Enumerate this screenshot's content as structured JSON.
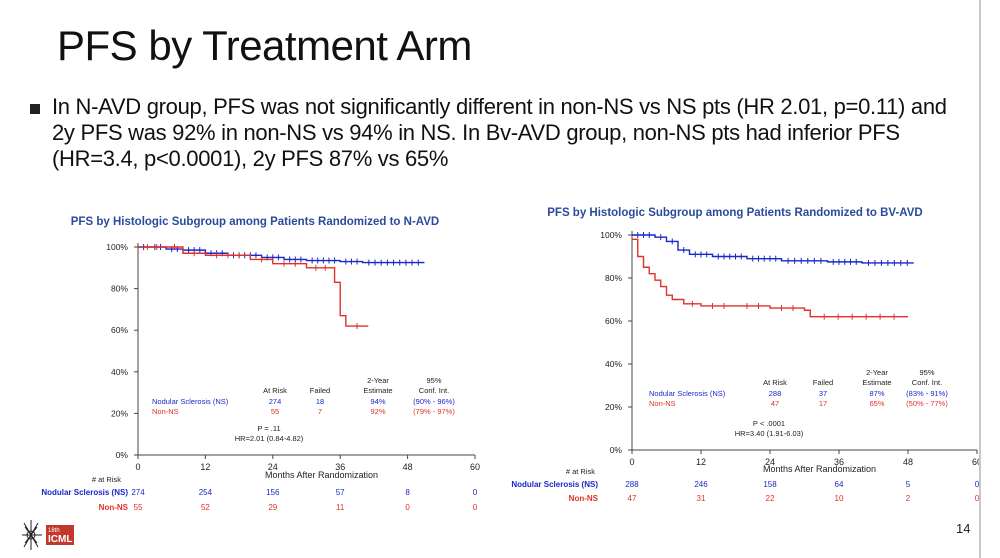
{
  "slide": {
    "title": "PFS by Treatment Arm",
    "bullet": "In N-AVD group, PFS was not significantly different in non-NS vs NS pts (HR 2.01, p=0.11) and 2y PFS was 92% in non-NS vs 94% in NS. In Bv-AVD group, non-NS pts had inferior PFS (HR=3.4, p<0.0001), 2y PFS 87% vs 65%",
    "page_number": "14",
    "logo_text_1": "18th",
    "logo_text_2": "ICML"
  },
  "colors": {
    "ns": "#1a27c9",
    "non_ns": "#e0312a",
    "title_blue": "#2a4b9b",
    "axis": "#444444"
  },
  "chart_data": [
    {
      "type": "line",
      "title": "PFS by Histologic Subgroup among Patients Randomized to N-AVD",
      "xlabel": "Months After Randomization",
      "ylabel": "",
      "xlim": [
        0,
        60
      ],
      "ylim": [
        0,
        100
      ],
      "x_ticks": [
        0,
        12,
        24,
        36,
        48,
        60
      ],
      "y_ticks": [
        "0%",
        "20%",
        "40%",
        "60%",
        "80%",
        "100%"
      ],
      "series": [
        {
          "name": "Nodular Sclerosis (NS)",
          "color": "#1a27c9",
          "points": [
            [
              0,
              100
            ],
            [
              2,
              100
            ],
            [
              5,
              99
            ],
            [
              8,
              98.5
            ],
            [
              12,
              97
            ],
            [
              16,
              96
            ],
            [
              22,
              95
            ],
            [
              26,
              94
            ],
            [
              30,
              93.5
            ],
            [
              36,
              93
            ],
            [
              40,
              92.5
            ],
            [
              51,
              92.5
            ]
          ]
        },
        {
          "name": "Non-NS",
          "color": "#e0312a",
          "points": [
            [
              0,
              100
            ],
            [
              5,
              100
            ],
            [
              8,
              97
            ],
            [
              12,
              96
            ],
            [
              20,
              94
            ],
            [
              24,
              92
            ],
            [
              30,
              90
            ],
            [
              35,
              90
            ],
            [
              35,
              83
            ],
            [
              36,
              83
            ],
            [
              36,
              67
            ],
            [
              37,
              62
            ],
            [
              41,
              62
            ]
          ]
        }
      ],
      "stats_header": [
        "",
        "At Risk",
        "Failed",
        "2-Year Estimate",
        "95% Conf. Int."
      ],
      "stats_header_top": [
        "",
        "",
        "",
        "2-Year",
        "95%"
      ],
      "stats_header_bottom": [
        "",
        "At Risk",
        "Failed",
        "Estimate",
        "Conf. Int."
      ],
      "stats_rows": [
        [
          "Nodular Sclerosis (NS)",
          "274",
          "18",
          "94%",
          "(90% - 96%)"
        ],
        [
          "Non-NS",
          "55",
          "7",
          "92%",
          "(79% - 97%)"
        ]
      ],
      "p_value": "P = .11",
      "hr": "HR=2.01 (0.84-4.82)",
      "risk_table": {
        "label": "# at Risk",
        "rows": [
          {
            "name": "Nodular Sclerosis (NS)",
            "values": [
              "274",
              "254",
              "156",
              "57",
              "8",
              "0"
            ]
          },
          {
            "name": "Non-NS",
            "values": [
              "55",
              "52",
              "29",
              "11",
              "0",
              "0"
            ]
          }
        ]
      }
    },
    {
      "type": "line",
      "title": "PFS by Histologic Subgroup among Patients Randomized to BV-AVD",
      "xlabel": "Months After Randomization",
      "ylabel": "",
      "xlim": [
        0,
        60
      ],
      "ylim": [
        0,
        100
      ],
      "x_ticks": [
        0,
        12,
        24,
        36,
        48,
        60
      ],
      "y_ticks": [
        "0%",
        "20%",
        "40%",
        "60%",
        "80%",
        "100%"
      ],
      "series": [
        {
          "name": "Nodular Sclerosis (NS)",
          "color": "#1a27c9",
          "points": [
            [
              0,
              100
            ],
            [
              4,
              99
            ],
            [
              6,
              97
            ],
            [
              8,
              93
            ],
            [
              10,
              91
            ],
            [
              14,
              90
            ],
            [
              20,
              89
            ],
            [
              26,
              88
            ],
            [
              34,
              87.5
            ],
            [
              40,
              87
            ],
            [
              49,
              87
            ]
          ]
        },
        {
          "name": "Non-NS",
          "color": "#e0312a",
          "points": [
            [
              0,
              98
            ],
            [
              1,
              90
            ],
            [
              2,
              85
            ],
            [
              3,
              82
            ],
            [
              4,
              79
            ],
            [
              5,
              76
            ],
            [
              6,
              72
            ],
            [
              7,
              70
            ],
            [
              9,
              68
            ],
            [
              12,
              67
            ],
            [
              18,
              67
            ],
            [
              24,
              66
            ],
            [
              30,
              65
            ],
            [
              31,
              62
            ],
            [
              48,
              62
            ]
          ]
        }
      ],
      "stats_header_top": [
        "",
        "",
        "",
        "2-Year",
        "95%"
      ],
      "stats_header_bottom": [
        "",
        "At Risk",
        "Failed",
        "Estimate",
        "Conf. Int."
      ],
      "stats_rows": [
        [
          "Nodular Sclerosis (NS)",
          "288",
          "37",
          "87%",
          "(83% - 91%)"
        ],
        [
          "Non-NS",
          "47",
          "17",
          "65%",
          "(50% - 77%)"
        ]
      ],
      "p_value": "P < .0001",
      "hr": "HR=3.40 (1.91-6.03)",
      "risk_table": {
        "label": "# at Risk",
        "rows": [
          {
            "name": "Nodular Sclerosis (NS)",
            "values": [
              "288",
              "246",
              "158",
              "64",
              "5",
              "0"
            ]
          },
          {
            "name": "Non-NS",
            "values": [
              "47",
              "31",
              "22",
              "10",
              "2",
              "0"
            ]
          }
        ]
      }
    }
  ]
}
